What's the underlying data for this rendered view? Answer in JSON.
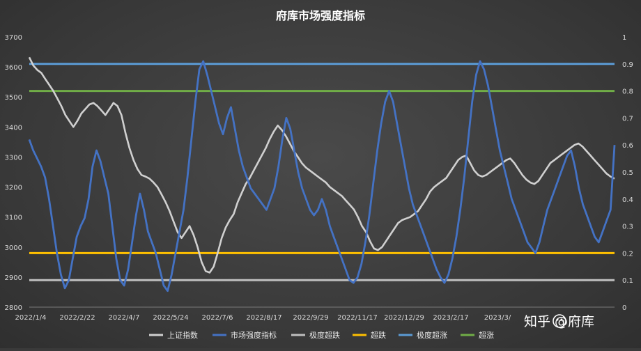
{
  "chart_data": {
    "type": "line",
    "title": "府库市场强度指标",
    "x_ticks": [
      "2022/1/4",
      "2022/2/22",
      "2022/4/7",
      "2022/5/24",
      "2022/7/6",
      "2022/8/17",
      "2022/9/29",
      "2022/11/17",
      "2022/12/29",
      "2023/2/17",
      "2023/3/"
    ],
    "y_left": {
      "ticks": [
        2800,
        2900,
        3000,
        3100,
        3200,
        3300,
        3400,
        3500,
        3600,
        3700
      ],
      "min": 2800,
      "max": 3700
    },
    "y_right": {
      "ticks": [
        "0",
        "0.1",
        "0.2",
        "0.3",
        "0.4",
        "0.5",
        "0.6",
        "0.7",
        "0.8",
        "0.9",
        "1"
      ],
      "min": 0,
      "max": 1
    },
    "colors": {
      "index": "#d0d0d0",
      "strength": "#4472c4",
      "extreme_oversold": "#bfbfbf",
      "oversold": "#ffc000",
      "extreme_overbought": "#5b9bd5",
      "overbought": "#70ad47"
    },
    "thresholds": [
      {
        "name": "极度超跌",
        "value": 0.1,
        "color": "#bfbfbf"
      },
      {
        "name": "超跌",
        "value": 0.2,
        "color": "#ffc000"
      },
      {
        "name": "极度超涨",
        "value": 0.9,
        "color": "#5b9bd5"
      },
      {
        "name": "超涨",
        "value": 0.8,
        "color": "#70ad47"
      }
    ],
    "legend": [
      {
        "name": "上证指数",
        "color": "#d0d0d0"
      },
      {
        "name": "市场强度指标",
        "color": "#4472c4"
      },
      {
        "name": "极度超跌",
        "color": "#bfbfbf"
      },
      {
        "name": "超跌",
        "color": "#ffc000"
      },
      {
        "name": "极度超涨",
        "color": "#5b9bd5"
      },
      {
        "name": "超涨",
        "color": "#70ad47"
      }
    ],
    "legend_position": "bottom",
    "grid": false,
    "series": [
      {
        "name": "上证指数",
        "axis": "left",
        "values": [
          3632,
          3605,
          3590,
          3580,
          3560,
          3540,
          3520,
          3495,
          3470,
          3440,
          3420,
          3400,
          3420,
          3445,
          3460,
          3475,
          3480,
          3470,
          3455,
          3440,
          3460,
          3480,
          3470,
          3440,
          3380,
          3330,
          3290,
          3260,
          3240,
          3235,
          3228,
          3215,
          3200,
          3175,
          3150,
          3120,
          3085,
          3050,
          3030,
          3050,
          3070,
          3040,
          3000,
          2950,
          2920,
          2915,
          2935,
          2980,
          3030,
          3065,
          3090,
          3110,
          3150,
          3180,
          3210,
          3230,
          3255,
          3280,
          3305,
          3330,
          3360,
          3385,
          3405,
          3390,
          3370,
          3345,
          3320,
          3300,
          3280,
          3265,
          3255,
          3245,
          3235,
          3225,
          3215,
          3200,
          3190,
          3180,
          3170,
          3155,
          3140,
          3125,
          3100,
          3070,
          3050,
          3020,
          2995,
          2990,
          3000,
          3020,
          3040,
          3060,
          3080,
          3090,
          3095,
          3100,
          3110,
          3120,
          3140,
          3160,
          3185,
          3200,
          3210,
          3220,
          3230,
          3250,
          3270,
          3290,
          3300,
          3305,
          3280,
          3255,
          3240,
          3235,
          3240,
          3250,
          3260,
          3270,
          3280,
          3290,
          3295,
          3280,
          3260,
          3240,
          3225,
          3215,
          3210,
          3220,
          3240,
          3260,
          3280,
          3290,
          3300,
          3310,
          3320,
          3330,
          3340,
          3345,
          3335,
          3320,
          3305,
          3290,
          3275,
          3260,
          3245,
          3235,
          3228
        ]
      },
      {
        "name": "市场强度指标",
        "axis": "right",
        "values": [
          0.62,
          0.58,
          0.55,
          0.52,
          0.48,
          0.4,
          0.3,
          0.2,
          0.12,
          0.07,
          0.1,
          0.18,
          0.26,
          0.3,
          0.33,
          0.4,
          0.52,
          0.58,
          0.54,
          0.48,
          0.42,
          0.3,
          0.18,
          0.1,
          0.08,
          0.14,
          0.24,
          0.34,
          0.42,
          0.36,
          0.28,
          0.24,
          0.2,
          0.14,
          0.08,
          0.06,
          0.12,
          0.2,
          0.28,
          0.36,
          0.48,
          0.62,
          0.76,
          0.88,
          0.91,
          0.86,
          0.8,
          0.74,
          0.68,
          0.64,
          0.7,
          0.74,
          0.66,
          0.58,
          0.52,
          0.48,
          0.44,
          0.42,
          0.4,
          0.38,
          0.36,
          0.4,
          0.44,
          0.52,
          0.62,
          0.7,
          0.66,
          0.58,
          0.5,
          0.44,
          0.4,
          0.36,
          0.34,
          0.36,
          0.4,
          0.36,
          0.3,
          0.26,
          0.22,
          0.18,
          0.14,
          0.1,
          0.09,
          0.11,
          0.16,
          0.24,
          0.34,
          0.46,
          0.58,
          0.68,
          0.76,
          0.8,
          0.76,
          0.68,
          0.6,
          0.52,
          0.44,
          0.38,
          0.34,
          0.3,
          0.26,
          0.22,
          0.18,
          0.14,
          0.11,
          0.09,
          0.12,
          0.18,
          0.26,
          0.36,
          0.48,
          0.62,
          0.76,
          0.86,
          0.91,
          0.88,
          0.82,
          0.74,
          0.66,
          0.58,
          0.52,
          0.46,
          0.4,
          0.36,
          0.32,
          0.28,
          0.24,
          0.22,
          0.2,
          0.24,
          0.3,
          0.36,
          0.4,
          0.44,
          0.48,
          0.52,
          0.56,
          0.58,
          0.52,
          0.44,
          0.38,
          0.34,
          0.3,
          0.26,
          0.24,
          0.28,
          0.32,
          0.36,
          0.6
        ]
      }
    ]
  },
  "watermark": {
    "text": "知乎 @府库"
  }
}
